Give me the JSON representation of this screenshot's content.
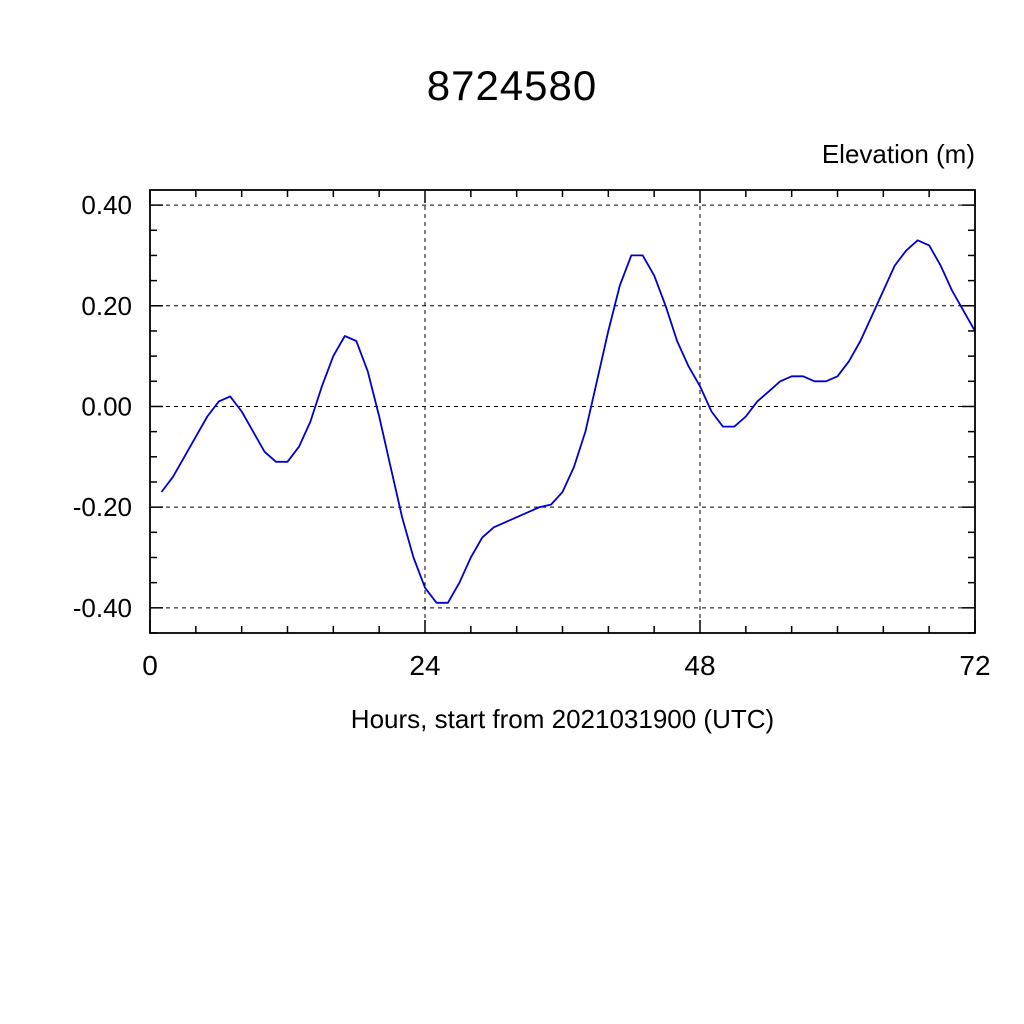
{
  "chart_data": {
    "type": "line",
    "title": "8724580",
    "y_axis_title": "Elevation (m)",
    "xlabel": "Hours, start from 2021031900 (UTC)",
    "xlim": [
      0,
      72
    ],
    "ylim": [
      -0.45,
      0.43
    ],
    "x_ticks": [
      0,
      24,
      48,
      72
    ],
    "x_tick_labels": [
      "0",
      "24",
      "48",
      "72"
    ],
    "x_minor_step": 4,
    "y_ticks": [
      -0.4,
      -0.2,
      0.0,
      0.2,
      0.4
    ],
    "y_tick_labels": [
      "-0.40",
      "-0.20",
      "0.00",
      "0.20",
      "0.40"
    ],
    "y_minor_step": 0.05,
    "grid": "dashed",
    "grid_x_lines": [
      24,
      48
    ],
    "line_color": "#0000cd",
    "axis_color": "#000000",
    "background": "#ffffff",
    "series_name": "elevation",
    "x": [
      1,
      2,
      3,
      4,
      5,
      6,
      7,
      8,
      9,
      10,
      11,
      12,
      13,
      14,
      15,
      16,
      17,
      18,
      19,
      20,
      21,
      22,
      23,
      24,
      25,
      26,
      27,
      28,
      29,
      30,
      31,
      32,
      33,
      34,
      35,
      36,
      37,
      38,
      39,
      40,
      41,
      42,
      43,
      44,
      45,
      46,
      47,
      48,
      49,
      50,
      51,
      52,
      53,
      54,
      55,
      56,
      57,
      58,
      59,
      60,
      61,
      62,
      63,
      64,
      65,
      66,
      67,
      68,
      69,
      70,
      71,
      72
    ],
    "y": [
      -0.17,
      -0.14,
      -0.1,
      -0.06,
      -0.02,
      0.01,
      0.02,
      -0.01,
      -0.05,
      -0.09,
      -0.11,
      -0.11,
      -0.08,
      -0.03,
      0.04,
      0.1,
      0.14,
      0.13,
      0.07,
      -0.02,
      -0.12,
      -0.22,
      -0.3,
      -0.36,
      -0.39,
      -0.39,
      -0.35,
      -0.3,
      -0.26,
      -0.24,
      -0.23,
      -0.22,
      -0.21,
      -0.2,
      -0.195,
      -0.17,
      -0.12,
      -0.05,
      0.05,
      0.15,
      0.24,
      0.3,
      0.3,
      0.26,
      0.2,
      0.13,
      0.08,
      0.04,
      -0.01,
      -0.04,
      -0.04,
      -0.02,
      0.01,
      0.03,
      0.05,
      0.06,
      0.06,
      0.05,
      0.05,
      0.06,
      0.09,
      0.13,
      0.18,
      0.23,
      0.28,
      0.31,
      0.33,
      0.32,
      0.28,
      0.23,
      0.19,
      0.15
    ]
  }
}
